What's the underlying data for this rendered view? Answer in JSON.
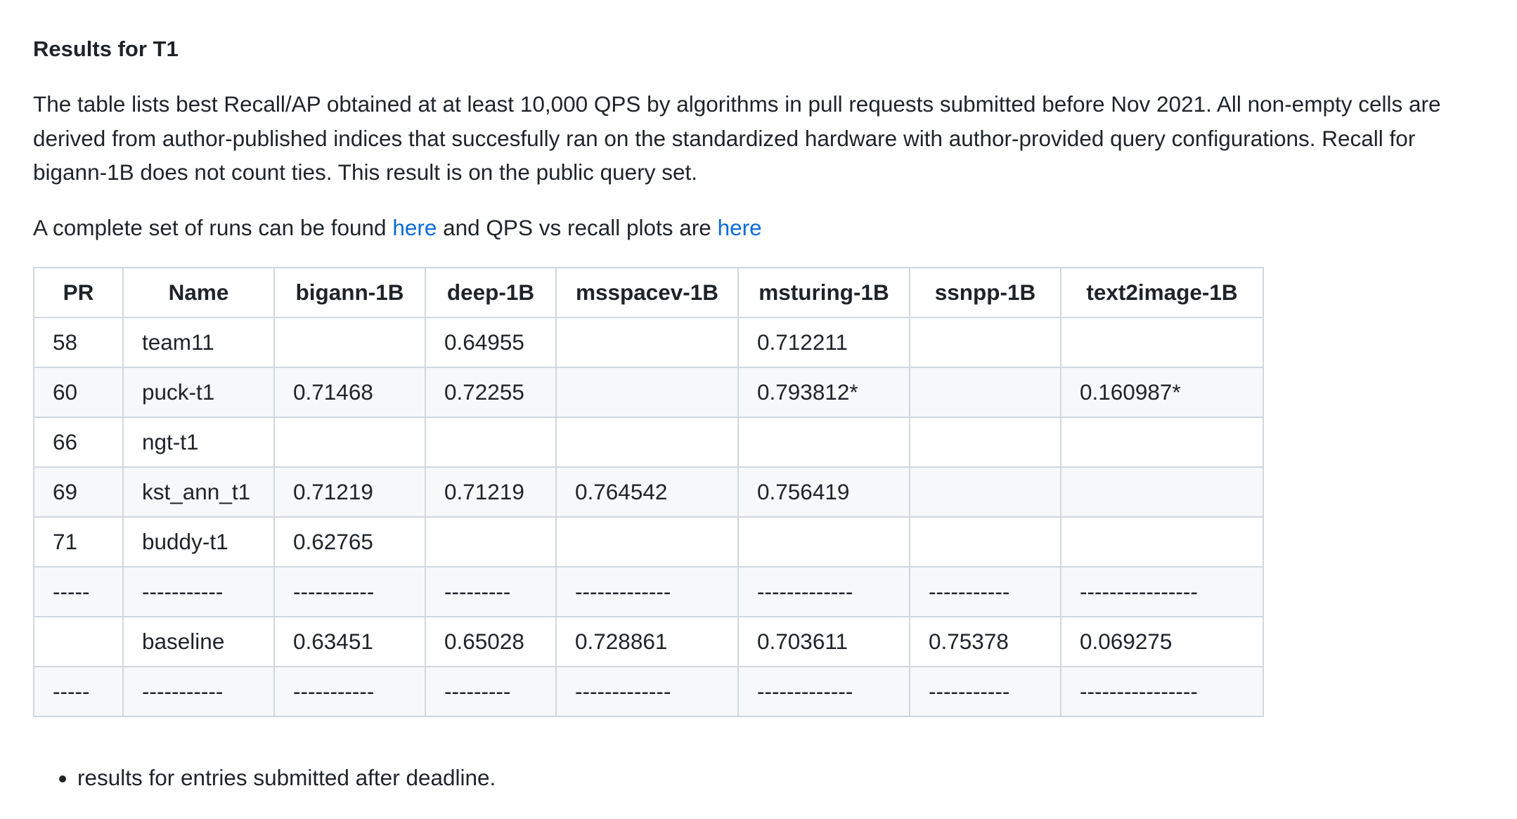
{
  "heading": "Results for T1",
  "description": "The table lists best Recall/AP obtained at at least 10,000 QPS by algorithms in pull requests submitted before Nov 2021. All non-empty cells are derived from author-published indices that succesfully ran on the standardized hardware with author-provided query configurations. Recall for bigann-1B does not count ties. This result is on the public query set.",
  "links_line": {
    "prefix": "A complete set of runs can be found ",
    "link1": "here",
    "middle": " and QPS vs recall plots are ",
    "link2": "here"
  },
  "table": {
    "headers": [
      "PR",
      "Name",
      "bigann-1B",
      "deep-1B",
      "msspacev-1B",
      "msturing-1B",
      "ssnpp-1B",
      "text2image-1B"
    ],
    "rows": [
      [
        "58",
        "team11",
        "",
        "0.64955",
        "",
        "0.712211",
        "",
        ""
      ],
      [
        "60",
        "puck-t1",
        "0.71468",
        "0.72255",
        "",
        "0.793812*",
        "",
        "0.160987*"
      ],
      [
        "66",
        "ngt-t1",
        "",
        "",
        "",
        "",
        "",
        ""
      ],
      [
        "69",
        "kst_ann_t1",
        "0.71219",
        "0.71219",
        "0.764542",
        "0.756419",
        "",
        ""
      ],
      [
        "71",
        "buddy-t1",
        "0.62765",
        "",
        "",
        "",
        "",
        ""
      ],
      [
        "-----",
        "-----------",
        "-----------",
        "---------",
        "-------------",
        "-------------",
        "-----------",
        "----------------"
      ],
      [
        "",
        "baseline",
        "0.63451",
        "0.65028",
        "0.728861",
        "0.703611",
        "0.75378",
        "0.069275"
      ],
      [
        "-----",
        "-----------",
        "-----------",
        "---------",
        "-------------",
        "-------------",
        "-----------",
        "----------------"
      ]
    ]
  },
  "notes": [
    "results for entries submitted after deadline."
  ]
}
